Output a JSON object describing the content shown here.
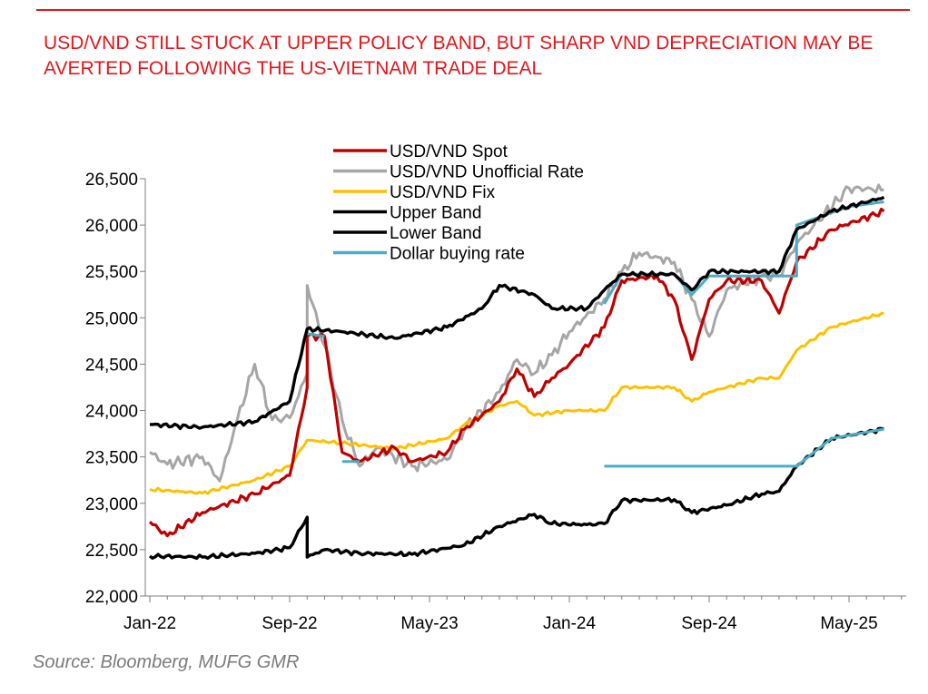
{
  "title": "USD/VND STILL STUCK AT UPPER POLICY BAND, BUT SHARP VND DEPRECIATION MAY BE AVERTED FOLLOWING THE US-VIETNAM TRADE DEAL",
  "source": "Source: Bloomberg, MUFG GMR",
  "chart_data": {
    "type": "line",
    "ylim": [
      22000,
      26500
    ],
    "yticks": [
      "22,000",
      "22,500",
      "23,000",
      "23,500",
      "24,000",
      "24,500",
      "25,000",
      "25,500",
      "26,000",
      "26,500"
    ],
    "xticks": [
      "Jan-22",
      "Sep-22",
      "May-23",
      "Jan-24",
      "Sep-24",
      "May-25"
    ],
    "legend_position": "top-center",
    "series": [
      {
        "name": "Lower Band",
        "color": "#000000",
        "points": [
          [
            "Jan-22",
            22430
          ],
          [
            "Apr-22",
            22420
          ],
          [
            "Jul-22",
            22460
          ],
          [
            "Sep-22",
            22520
          ],
          [
            "Oct-22",
            22850
          ],
          [
            "Oct-22",
            22420
          ],
          [
            "Nov-22",
            22500
          ],
          [
            "Jan-23",
            22460
          ],
          [
            "Apr-23",
            22450
          ],
          [
            "Jul-23",
            22550
          ],
          [
            "Sep-23",
            22750
          ],
          [
            "Nov-23",
            22880
          ],
          [
            "Dec-23",
            22780
          ],
          [
            "Feb-24",
            22770
          ],
          [
            "Mar-24",
            22780
          ],
          [
            "Apr-24",
            23030
          ],
          [
            "Jul-24",
            23040
          ],
          [
            "Aug-24",
            22900
          ],
          [
            "Oct-24",
            22980
          ],
          [
            "Dec-24",
            23100
          ],
          [
            "Jan-25",
            23130
          ],
          [
            "Feb-25",
            23400
          ],
          [
            "Apr-25",
            23700
          ],
          [
            "Jul-25",
            23800
          ]
        ]
      },
      {
        "name": "USD/VND Unofficial Rate",
        "color": "#a6a6a6",
        "points": [
          [
            "Jan-22",
            23550
          ],
          [
            "Feb-22",
            23420
          ],
          [
            "Apr-22",
            23500
          ],
          [
            "May-22",
            23240
          ],
          [
            "Jun-22",
            23900
          ],
          [
            "Jul-22",
            24500
          ],
          [
            "Aug-22",
            23900
          ],
          [
            "Sep-22",
            23920
          ],
          [
            "Oct-22",
            24400
          ],
          [
            "Oct-22",
            25350
          ],
          [
            "Nov-22",
            24700
          ],
          [
            "Dec-22",
            23900
          ],
          [
            "Jan-23",
            23400
          ],
          [
            "Feb-23",
            23600
          ],
          [
            "Apr-23",
            23400
          ],
          [
            "Jun-23",
            23470
          ],
          [
            "Jul-23",
            23800
          ],
          [
            "Sep-23",
            24200
          ],
          [
            "Oct-23",
            24550
          ],
          [
            "Nov-23",
            24400
          ],
          [
            "Dec-23",
            24600
          ],
          [
            "Jan-24",
            24850
          ],
          [
            "Mar-24",
            25200
          ],
          [
            "Apr-24",
            25500
          ],
          [
            "May-24",
            25700
          ],
          [
            "Jul-24",
            25600
          ],
          [
            "Aug-24",
            25200
          ],
          [
            "Sep-24",
            24800
          ],
          [
            "Oct-24",
            25300
          ],
          [
            "Dec-24",
            25450
          ],
          [
            "Jan-25",
            25450
          ],
          [
            "Feb-25",
            25800
          ],
          [
            "Mar-25",
            26000
          ],
          [
            "May-25",
            26400
          ],
          [
            "Jul-25",
            26380
          ]
        ]
      },
      {
        "name": "USD/VND Fix",
        "color": "#ffc000",
        "points": [
          [
            "Jan-22",
            23150
          ],
          [
            "Apr-22",
            23110
          ],
          [
            "Jul-22",
            23250
          ],
          [
            "Sep-22",
            23400
          ],
          [
            "Oct-22",
            23680
          ],
          [
            "Dec-22",
            23650
          ],
          [
            "Mar-23",
            23590
          ],
          [
            "Jun-23",
            23700
          ],
          [
            "Jul-23",
            23850
          ],
          [
            "Sep-23",
            24050
          ],
          [
            "Oct-23",
            24100
          ],
          [
            "Nov-23",
            23950
          ],
          [
            "Jan-24",
            24000
          ],
          [
            "Mar-24",
            24000
          ],
          [
            "Apr-24",
            24250
          ],
          [
            "Jul-24",
            24250
          ],
          [
            "Aug-24",
            24100
          ],
          [
            "Sep-24",
            24200
          ],
          [
            "Dec-24",
            24350
          ],
          [
            "Jan-25",
            24350
          ],
          [
            "Feb-25",
            24650
          ],
          [
            "Apr-25",
            24900
          ],
          [
            "Jul-25",
            25050
          ]
        ]
      },
      {
        "name": "USD/VND Spot",
        "color": "#c00000",
        "points": [
          [
            "Jan-22",
            22800
          ],
          [
            "Feb-22",
            22650
          ],
          [
            "Apr-22",
            22900
          ],
          [
            "Jul-22",
            23100
          ],
          [
            "Sep-22",
            23300
          ],
          [
            "Oct-22",
            24250
          ],
          [
            "Oct-22",
            24800
          ],
          [
            "Nov-22",
            24800
          ],
          [
            "Dec-22",
            23550
          ],
          [
            "Jan-23",
            23450
          ],
          [
            "Mar-23",
            23600
          ],
          [
            "Apr-23",
            23450
          ],
          [
            "Jun-23",
            23550
          ],
          [
            "Jul-23",
            23800
          ],
          [
            "Sep-23",
            24100
          ],
          [
            "Oct-23",
            24450
          ],
          [
            "Nov-23",
            24150
          ],
          [
            "Dec-23",
            24350
          ],
          [
            "Jan-24",
            24500
          ],
          [
            "Mar-24",
            24900
          ],
          [
            "Apr-24",
            25400
          ],
          [
            "Jun-24",
            25450
          ],
          [
            "Jul-24",
            25200
          ],
          [
            "Aug-24",
            24550
          ],
          [
            "Sep-24",
            25200
          ],
          [
            "Oct-24",
            25400
          ],
          [
            "Dec-24",
            25400
          ],
          [
            "Jan-25",
            25050
          ],
          [
            "Feb-25",
            25600
          ],
          [
            "Apr-25",
            25950
          ],
          [
            "Jul-25",
            26150
          ]
        ]
      },
      {
        "name": "Dollar buying rate",
        "color": "#4bacc6",
        "segments": [
          [
            [
              "Oct-22",
              24830
            ],
            [
              "Nov-22",
              24800
            ]
          ],
          [
            [
              "Dec-22",
              23450
            ],
            [
              "Jan-23",
              23450
            ]
          ],
          [
            [
              "Mar-24",
              23400
            ],
            [
              "Feb-25",
              23400
            ],
            [
              "Apr-25",
              23700
            ],
            [
              "Jul-25",
              23800
            ]
          ],
          [
            [
              "Mar-24",
              25150
            ],
            [
              "Apr-24",
              25470
            ],
            [
              "Jul-24",
              25470
            ],
            [
              "Aug-24",
              25250
            ],
            [
              "Sep-24",
              25450
            ],
            [
              "Feb-25",
              25450
            ],
            [
              "Feb-25",
              26000
            ],
            [
              "May-25",
              26200
            ],
            [
              "Jul-25",
              26250
            ]
          ]
        ]
      },
      {
        "name": "Upper Band",
        "color": "#000000",
        "points": [
          [
            "Jan-22",
            23850
          ],
          [
            "Apr-22",
            23820
          ],
          [
            "Jul-22",
            23880
          ],
          [
            "Sep-22",
            24100
          ],
          [
            "Oct-22",
            24880
          ],
          [
            "Dec-22",
            24850
          ],
          [
            "Mar-23",
            24780
          ],
          [
            "Jun-23",
            24900
          ],
          [
            "Aug-23",
            25100
          ],
          [
            "Sep-23",
            25350
          ],
          [
            "Nov-23",
            25250
          ],
          [
            "Dec-23",
            25100
          ],
          [
            "Feb-24",
            25100
          ],
          [
            "Mar-24",
            25300
          ],
          [
            "Apr-24",
            25470
          ],
          [
            "Jul-24",
            25470
          ],
          [
            "Aug-24",
            25300
          ],
          [
            "Sep-24",
            25500
          ],
          [
            "Jan-25",
            25500
          ],
          [
            "Feb-25",
            25950
          ],
          [
            "Apr-25",
            26150
          ],
          [
            "Jul-25",
            26300
          ]
        ]
      }
    ],
    "legend_order": [
      "USD/VND Spot",
      "USD/VND Unofficial Rate",
      "USD/VND Fix",
      "Upper Band",
      "Lower Band",
      "Dollar buying rate"
    ]
  }
}
